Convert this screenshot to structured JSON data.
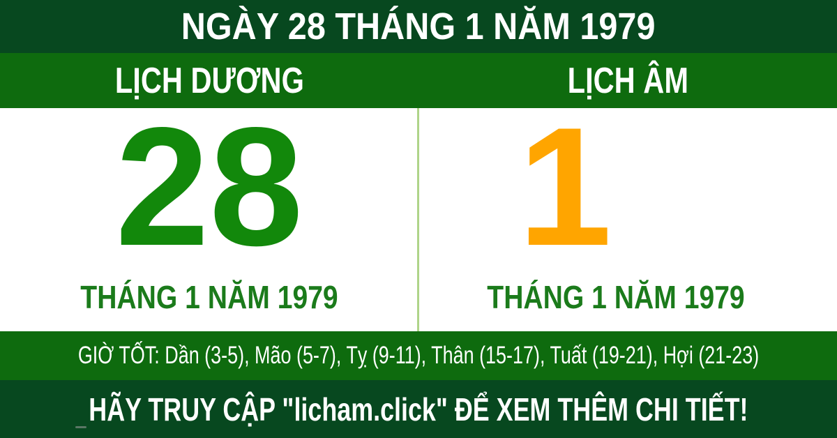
{
  "header": {
    "title": "NGÀY 28 THÁNG 1 NĂM 1979"
  },
  "columns": {
    "solar": {
      "label": "LỊCH DƯƠNG",
      "day": "28",
      "month_year": "THÁNG 1 NĂM 1979"
    },
    "lunar": {
      "label": "LỊCH ÂM",
      "day": "1",
      "month_year": "THÁNG 1 NĂM 1979"
    }
  },
  "good_hours": {
    "text": "GIỜ TỐT: Dần (3-5), Mão (5-7), Tỵ (9-11), Thân (15-17), Tuất (19-21), Hợi (21-23)"
  },
  "footer": {
    "text": "HÃY TRUY CẬP \"licham.click\" ĐỂ XEM THÊM CHI TIẾT!"
  },
  "colors": {
    "dark_green": "#07481F",
    "medium_green": "#0E6B0E",
    "solar_green": "#12880B",
    "month_green": "#1B7B1B",
    "lunar_orange": "#FFA500",
    "divider_green": "#AFD489",
    "text_white": "#FFFFFF",
    "background_white": "#FFFFFF"
  }
}
